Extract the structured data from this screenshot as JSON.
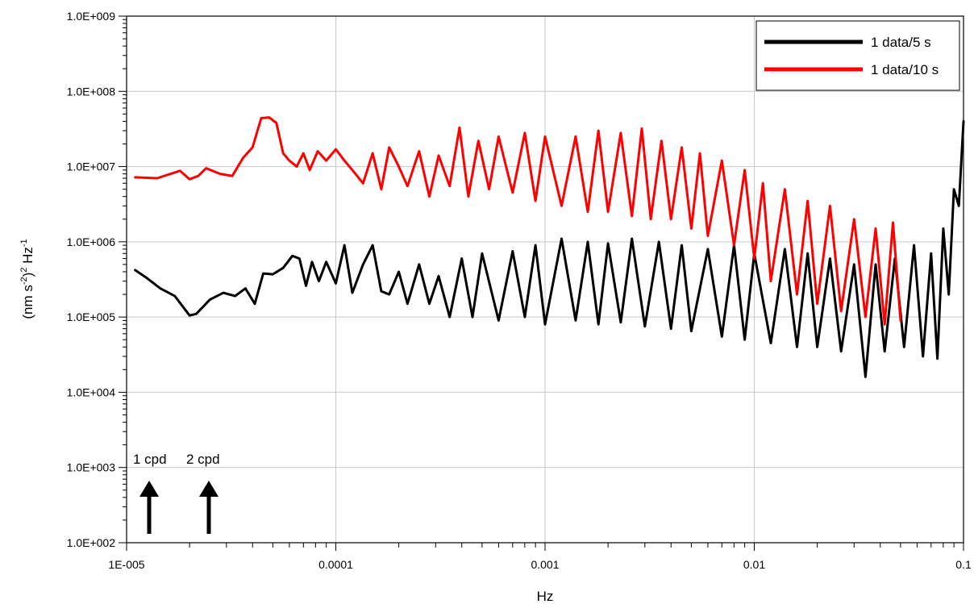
{
  "chart_data": {
    "type": "line",
    "title": "",
    "xlabel": "Hz",
    "ylabel_parts": {
      "base": "(nm s",
      "sup1": "-2",
      "mid": ")",
      "sup2": "2",
      "unit": " Hz",
      "sup3": "-1"
    },
    "x_scale": "log",
    "y_scale": "log",
    "xlim": [
      1e-05,
      0.1
    ],
    "ylim": [
      100,
      1000000000
    ],
    "grid": true,
    "legend_position": "top-right",
    "x_tick_labels": [
      {
        "value": 1e-05,
        "label": "1E-005"
      },
      {
        "value": 0.0001,
        "label": "0.0001"
      },
      {
        "value": 0.001,
        "label": "0.001"
      },
      {
        "value": 0.01,
        "label": "0.01"
      },
      {
        "value": 0.1,
        "label": "0.1"
      }
    ],
    "y_tick_labels": [
      {
        "value": 100,
        "label": "1.0E+002"
      },
      {
        "value": 1000,
        "label": "1.0E+003"
      },
      {
        "value": 10000,
        "label": "1.0E+004"
      },
      {
        "value": 100000,
        "label": "1.0E+005"
      },
      {
        "value": 1000000,
        "label": "1.0E+006"
      },
      {
        "value": 10000000,
        "label": "1.0E+007"
      },
      {
        "value": 100000000,
        "label": "1.0E+008"
      },
      {
        "value": 1000000000,
        "label": "1.0E+009"
      }
    ],
    "series": [
      {
        "name": "1 data/5 s",
        "color": "#000000",
        "x": [
          1.1e-05,
          1.25e-05,
          1.45e-05,
          1.7e-05,
          2e-05,
          2.15e-05,
          2.5e-05,
          2.9e-05,
          3.3e-05,
          3.7e-05,
          4.1e-05,
          4.5e-05,
          5e-05,
          5.6e-05,
          6.2e-05,
          6.7e-05,
          7.2e-05,
          7.7e-05,
          8.3e-05,
          9e-05,
          0.0001,
          0.00011,
          0.00012,
          0.000135,
          0.00015,
          0.000165,
          0.00018,
          0.0002,
          0.00022,
          0.00025,
          0.00028,
          0.00031,
          0.00035,
          0.0004,
          0.00045,
          0.0005,
          0.0006,
          0.0007,
          0.0008,
          0.0009,
          0.001,
          0.0012,
          0.0014,
          0.0016,
          0.0018,
          0.002,
          0.0023,
          0.0026,
          0.003,
          0.0035,
          0.004,
          0.0045,
          0.005,
          0.006,
          0.007,
          0.008,
          0.009,
          0.01,
          0.012,
          0.014,
          0.016,
          0.018,
          0.02,
          0.023,
          0.026,
          0.03,
          0.034,
          0.038,
          0.042,
          0.047,
          0.052,
          0.058,
          0.064,
          0.07,
          0.075,
          0.08,
          0.085,
          0.09,
          0.095,
          0.1
        ],
        "y": [
          420000,
          330000,
          240000,
          190000,
          105000,
          110000,
          170000,
          210000,
          190000,
          240000,
          150000,
          380000,
          370000,
          450000,
          650000,
          600000,
          260000,
          540000,
          300000,
          540000,
          280000,
          900000,
          210000,
          500000,
          900000,
          220000,
          200000,
          400000,
          150000,
          500000,
          150000,
          350000,
          100000,
          600000,
          100000,
          700000,
          90000,
          750000,
          100000,
          900000,
          80000,
          1100000,
          90000,
          1000000,
          80000,
          950000,
          85000,
          1100000,
          75000,
          1000000,
          70000,
          900000,
          65000,
          800000,
          55000,
          900000,
          50000,
          700000,
          45000,
          800000,
          40000,
          700000,
          40000,
          600000,
          35000,
          500000,
          16000,
          500000,
          35000,
          600000,
          40000,
          900000,
          30000,
          700000,
          28000,
          1500000,
          200000,
          5000000,
          3000000,
          40000000
        ]
      },
      {
        "name": "1 data/10 s",
        "color": "#ff0000",
        "x": [
          1.1e-05,
          1.4e-05,
          1.8e-05,
          2e-05,
          2.2e-05,
          2.4e-05,
          2.8e-05,
          3.2e-05,
          3.6e-05,
          4e-05,
          4.4e-05,
          4.8e-05,
          5.2e-05,
          5.6e-05,
          6e-05,
          6.5e-05,
          7e-05,
          7.5e-05,
          8.2e-05,
          9e-05,
          0.0001,
          0.00011,
          0.00012,
          0.000135,
          0.00015,
          0.000165,
          0.00018,
          0.0002,
          0.00022,
          0.00025,
          0.00028,
          0.00031,
          0.00035,
          0.00039,
          0.00043,
          0.00048,
          0.00054,
          0.0006,
          0.0007,
          0.0008,
          0.0009,
          0.001,
          0.0012,
          0.0014,
          0.0016,
          0.0018,
          0.002,
          0.0023,
          0.0026,
          0.0029,
          0.0032,
          0.0036,
          0.004,
          0.0045,
          0.005,
          0.0055,
          0.006,
          0.007,
          0.008,
          0.009,
          0.01,
          0.011,
          0.012,
          0.014,
          0.016,
          0.018,
          0.02,
          0.023,
          0.026,
          0.03,
          0.034,
          0.038,
          0.042,
          0.046,
          0.05
        ],
        "y": [
          7200000,
          7000000,
          8800000,
          6800000,
          7500000,
          9500000,
          8000000,
          7500000,
          13000000,
          18000000,
          44000000,
          45000000,
          38000000,
          15000000,
          12000000,
          10000000,
          15000000,
          9000000,
          16000000,
          12000000,
          17000000,
          12000000,
          9000000,
          6000000,
          15000000,
          5000000,
          18000000,
          10000000,
          5500000,
          16000000,
          4000000,
          14000000,
          5500000,
          33000000,
          4000000,
          22000000,
          5000000,
          25000000,
          4500000,
          28000000,
          3500000,
          25000000,
          3000000,
          25000000,
          2500000,
          30000000,
          2500000,
          28000000,
          2200000,
          32000000,
          2000000,
          22000000,
          2000000,
          18000000,
          1500000,
          15000000,
          1200000,
          12000000,
          900000,
          9000000,
          600000,
          6000000,
          300000,
          5000000,
          200000,
          3500000,
          150000,
          3000000,
          120000,
          2000000,
          100000,
          1500000,
          80000,
          1800000,
          90000
        ]
      }
    ],
    "annotations": [
      {
        "text": "1 cpd",
        "x": 1.157e-05
      },
      {
        "text": "2 cpd",
        "x": 2.315e-05
      }
    ]
  }
}
